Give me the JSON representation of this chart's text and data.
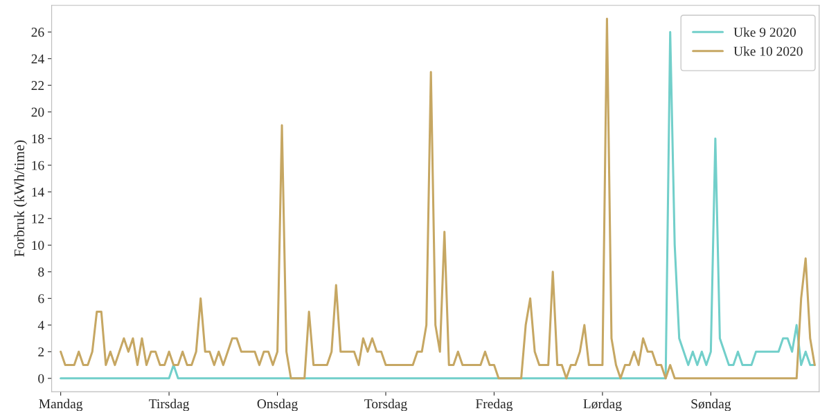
{
  "chart_data": {
    "type": "line",
    "ylabel": "Forbruk (kWh/time)",
    "categories": [
      "Mandag",
      null,
      null,
      null,
      null,
      null,
      null,
      null,
      null,
      null,
      null,
      null,
      null,
      null,
      null,
      null,
      null,
      null,
      null,
      null,
      null,
      null,
      null,
      null,
      "Tirsdag",
      null,
      null,
      null,
      null,
      null,
      null,
      null,
      null,
      null,
      null,
      null,
      null,
      null,
      null,
      null,
      null,
      null,
      null,
      null,
      null,
      null,
      null,
      null,
      "Onsdag",
      null,
      null,
      null,
      null,
      null,
      null,
      null,
      null,
      null,
      null,
      null,
      null,
      null,
      null,
      null,
      null,
      null,
      null,
      null,
      null,
      null,
      null,
      null,
      "Torsdag",
      null,
      null,
      null,
      null,
      null,
      null,
      null,
      null,
      null,
      null,
      null,
      null,
      null,
      null,
      null,
      null,
      null,
      null,
      null,
      null,
      null,
      null,
      null,
      "Fredag",
      null,
      null,
      null,
      null,
      null,
      null,
      null,
      null,
      null,
      null,
      null,
      null,
      null,
      null,
      null,
      null,
      null,
      null,
      null,
      null,
      null,
      null,
      null,
      "Lørdag",
      null,
      null,
      null,
      null,
      null,
      null,
      null,
      null,
      null,
      null,
      null,
      null,
      null,
      null,
      null,
      null,
      null,
      null,
      null,
      null,
      null,
      null,
      null,
      "Søndag",
      null,
      null,
      null,
      null,
      null,
      null,
      null,
      null,
      null,
      null,
      null,
      null,
      null,
      null,
      null,
      null,
      null,
      null,
      null,
      null,
      null,
      null,
      null
    ],
    "series": [
      {
        "name": "Uke 9 2020",
        "color": "#72cfca",
        "values": [
          0,
          0,
          0,
          0,
          0,
          0,
          0,
          0,
          0,
          0,
          0,
          0,
          0,
          0,
          0,
          0,
          0,
          0,
          0,
          0,
          0,
          0,
          0,
          0,
          0,
          1,
          0,
          0,
          0,
          0,
          0,
          0,
          0,
          0,
          0,
          0,
          0,
          0,
          0,
          0,
          0,
          0,
          0,
          0,
          0,
          0,
          0,
          0,
          0,
          0,
          0,
          0,
          0,
          0,
          0,
          0,
          0,
          0,
          0,
          0,
          0,
          0,
          0,
          0,
          0,
          0,
          0,
          0,
          0,
          0,
          0,
          0,
          0,
          0,
          0,
          0,
          0,
          0,
          0,
          0,
          0,
          0,
          0,
          0,
          0,
          0,
          0,
          0,
          0,
          0,
          0,
          0,
          0,
          0,
          0,
          0,
          0,
          0,
          0,
          0,
          0,
          0,
          0,
          0,
          0,
          0,
          0,
          0,
          0,
          0,
          0,
          0,
          0,
          0,
          0,
          0,
          0,
          0,
          0,
          0,
          0,
          0,
          0,
          0,
          0,
          0,
          0,
          0,
          0,
          0,
          0,
          0,
          0,
          0,
          0,
          26,
          10,
          3,
          2,
          1,
          2,
          1,
          2,
          1,
          2,
          18,
          3,
          2,
          1,
          1,
          2,
          1,
          1,
          1,
          2,
          2,
          2,
          2,
          2,
          2,
          3,
          3,
          2,
          4,
          1,
          2,
          1,
          1
        ]
      },
      {
        "name": "Uke 10 2020",
        "color": "#c6a763",
        "values": [
          2,
          1,
          1,
          1,
          2,
          1,
          1,
          2,
          5,
          5,
          1,
          2,
          1,
          2,
          3,
          2,
          3,
          1,
          3,
          1,
          2,
          2,
          1,
          1,
          2,
          1,
          1,
          2,
          1,
          1,
          2,
          6,
          2,
          2,
          1,
          2,
          1,
          2,
          3,
          3,
          2,
          2,
          2,
          2,
          1,
          2,
          2,
          1,
          2,
          19,
          2,
          0,
          0,
          0,
          0,
          5,
          1,
          1,
          1,
          1,
          2,
          7,
          2,
          2,
          2,
          2,
          1,
          3,
          2,
          3,
          2,
          2,
          1,
          1,
          1,
          1,
          1,
          1,
          1,
          2,
          2,
          4,
          23,
          4,
          2,
          11,
          1,
          1,
          2,
          1,
          1,
          1,
          1,
          1,
          2,
          1,
          1,
          0,
          0,
          0,
          0,
          0,
          0,
          4,
          6,
          2,
          1,
          1,
          1,
          8,
          1,
          1,
          0,
          1,
          1,
          2,
          4,
          1,
          1,
          1,
          1,
          27,
          3,
          1,
          0,
          1,
          1,
          2,
          1,
          3,
          2,
          2,
          1,
          1,
          0,
          1,
          0,
          0,
          0,
          0,
          0,
          0,
          0,
          0,
          0,
          0,
          0,
          0,
          0,
          0,
          0,
          0,
          0,
          0,
          0,
          0,
          0,
          0,
          0,
          0,
          0,
          0,
          0,
          0,
          6,
          9,
          3,
          1
        ]
      }
    ],
    "ylim": [
      -1,
      28
    ],
    "yticks": [
      0,
      2,
      4,
      6,
      8,
      10,
      12,
      14,
      16,
      18,
      20,
      22,
      24,
      26
    ],
    "grid": false,
    "legend": "top right",
    "line_style": "solid"
  }
}
